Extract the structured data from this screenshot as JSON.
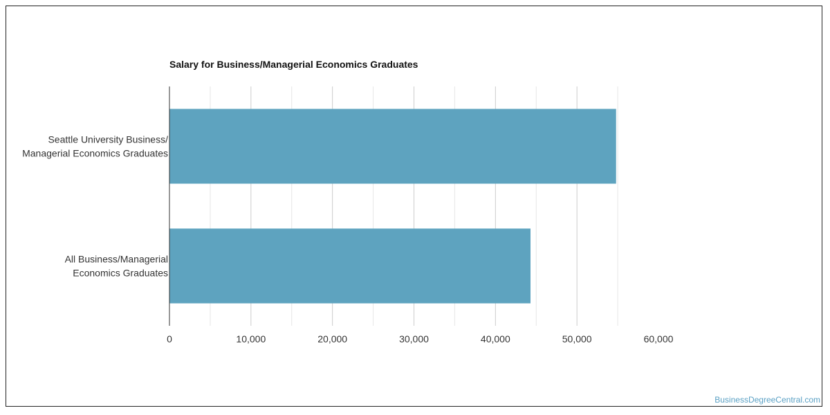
{
  "chart_data": {
    "type": "bar",
    "orientation": "horizontal",
    "title": "Salary for Business/Managerial Economics Graduates",
    "categories": [
      [
        "Seattle University Business/",
        "Managerial Economics Graduates"
      ],
      [
        "All Business/Managerial",
        "Economics Graduates"
      ]
    ],
    "values": [
      54800,
      44300
    ],
    "xlim": [
      0,
      60000
    ],
    "xticks": [
      0,
      10000,
      20000,
      30000,
      40000,
      50000,
      60000
    ],
    "xtick_labels": [
      "0",
      "10,000",
      "20,000",
      "30,000",
      "40,000",
      "50,000",
      "60,000"
    ],
    "grid": true,
    "bar_color": "#5ea3bf"
  },
  "watermark": "BusinessDegreeCentral.com"
}
